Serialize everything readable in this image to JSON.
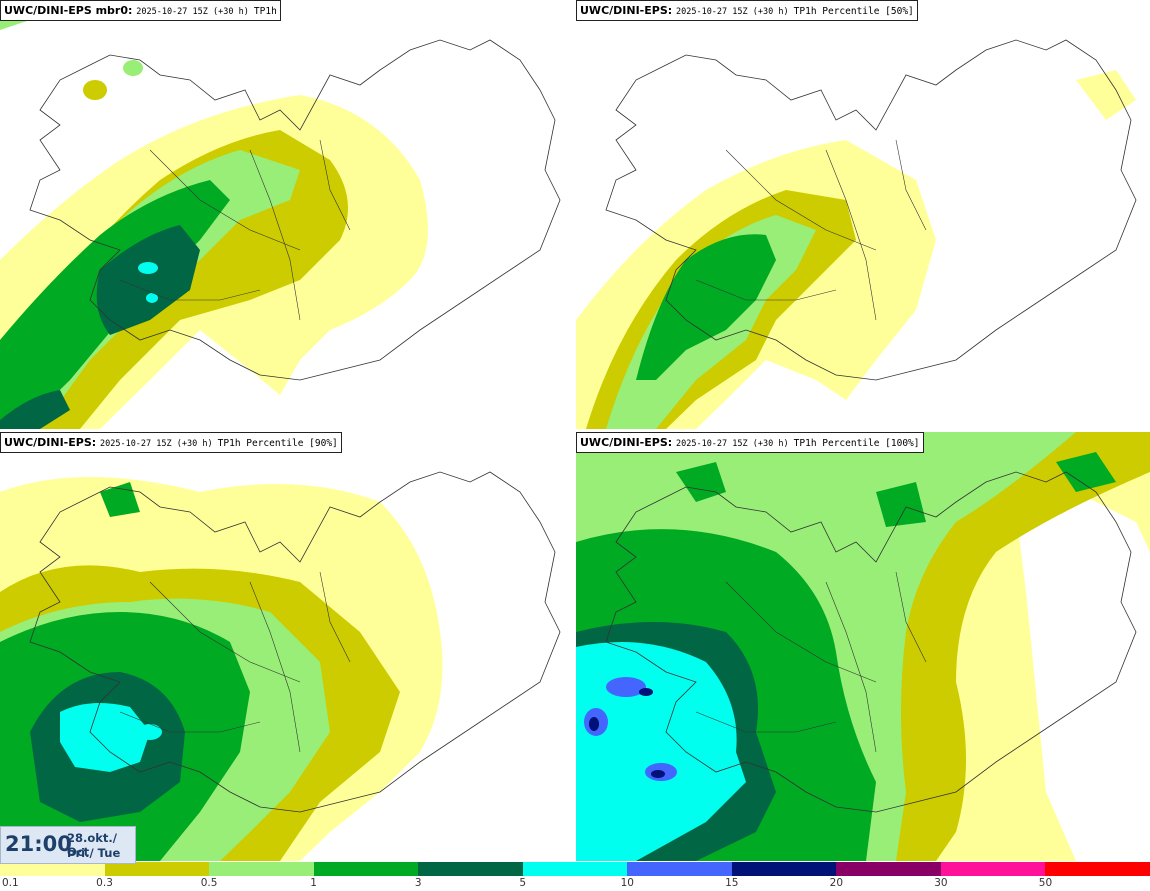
{
  "panels": [
    {
      "model": "UWC/DINI-EPS mbr0",
      "run": "2025-10-27 15Z (+30 h)",
      "variable": "TP1h"
    },
    {
      "model": "UWC/DINI-EPS",
      "run": "2025-10-27 15Z (+30 h)",
      "variable": "TP1h Percentile [50%]"
    },
    {
      "model": "UWC/DINI-EPS",
      "run": "2025-10-27 15Z (+30 h)",
      "variable": "TP1h Percentile [90%]"
    },
    {
      "model": "UWC/DINI-EPS",
      "run": "2025-10-27 15Z (+30 h)",
      "variable": "TP1h Percentile [100%]"
    }
  ],
  "valid_time": {
    "clock": "21:00",
    "date": "28.okt./ Oct",
    "weekday": "Þri./ Tue"
  },
  "legend": {
    "ticks": [
      "0.1",
      "0.3",
      "0.5",
      "1",
      "3",
      "5",
      "10",
      "15",
      "20",
      "30",
      "50"
    ],
    "colors": [
      "#ffff99",
      "#cccc00",
      "#99ee77",
      "#00aa22",
      "#006644",
      "#00ffee",
      "#4466ff",
      "#001177",
      "#880066",
      "#ff1199",
      "#ff0000"
    ]
  }
}
